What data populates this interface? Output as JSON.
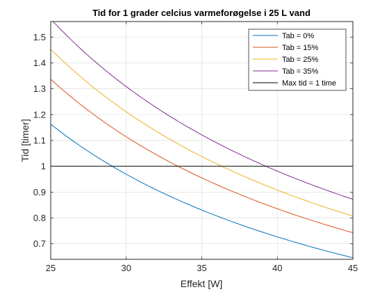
{
  "chart_data": {
    "type": "line",
    "title": "Tid for 1 grader celcius varmeforøgelse i 25 L vand",
    "xlabel": "Effekt [W]",
    "ylabel": "Tid [timer]",
    "xlim": [
      25,
      45
    ],
    "ylim": [
      0.64,
      1.56
    ],
    "x_ticks": [
      25,
      30,
      35,
      40,
      45
    ],
    "y_ticks": [
      0.7,
      0.8,
      0.9,
      1,
      1.1,
      1.2,
      1.3,
      1.4,
      1.5
    ],
    "grid": true,
    "legend_position": "top-right",
    "x": [
      25,
      27.5,
      30,
      32.5,
      35,
      37.5,
      40,
      42.5,
      45
    ],
    "series": [
      {
        "name": "Tab = 0%",
        "color": "#0072BD",
        "values": [
          1.163,
          1.057,
          0.969,
          0.894,
          0.83,
          0.775,
          0.726,
          0.684,
          0.646
        ]
      },
      {
        "name": "Tab = 15%",
        "color": "#D95319",
        "values": [
          1.337,
          1.216,
          1.114,
          1.029,
          0.955,
          0.891,
          0.836,
          0.787,
          0.743
        ]
      },
      {
        "name": "Tab = 25%",
        "color": "#EDB120",
        "values": [
          1.453,
          1.321,
          1.211,
          1.118,
          1.038,
          0.969,
          0.908,
          0.855,
          0.807
        ]
      },
      {
        "name": "Tab = 35%",
        "color": "#7E2F8E",
        "values": [
          1.57,
          1.427,
          1.308,
          1.207,
          1.121,
          1.046,
          0.981,
          0.923,
          0.872
        ]
      },
      {
        "name": "Max tid = 1 time",
        "color": "#000000",
        "values": [
          1,
          1,
          1,
          1,
          1,
          1,
          1,
          1,
          1
        ]
      }
    ]
  }
}
